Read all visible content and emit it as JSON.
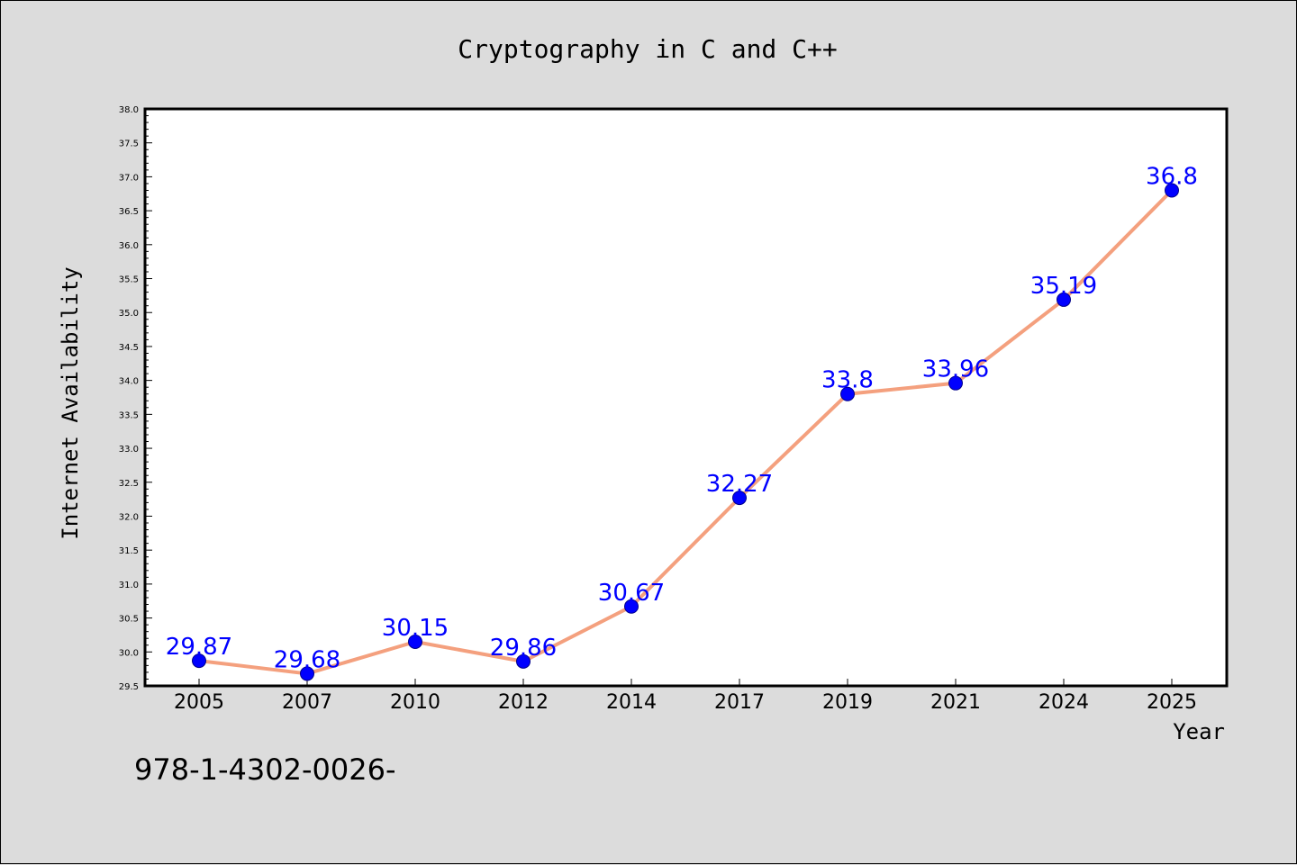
{
  "footer_text": "978-1-4302-0026-",
  "chart_data": {
    "type": "line",
    "title": "Cryptography in C and C++",
    "xlabel": "Year",
    "ylabel": "Internet Availability",
    "categories": [
      "2005",
      "2007",
      "2010",
      "2012",
      "2014",
      "2017",
      "2019",
      "2021",
      "2024",
      "2025"
    ],
    "series": [
      {
        "values": [
          29.87,
          29.68,
          30.15,
          29.86,
          30.67,
          32.27,
          33.8,
          33.96,
          35.19,
          36.8
        ],
        "data_labels": [
          "29.87",
          "29.68",
          "30.15",
          "29.86",
          "30.67",
          "32.27",
          "33.8",
          "33.96",
          "35.19",
          "36.8"
        ],
        "line_color": "#f4a07e",
        "marker_color": "#0000ff",
        "label_color": "#0000ff"
      }
    ],
    "ylim": [
      29.5,
      38.0
    ],
    "y_major_step": 0.5,
    "y_tick_labels": [
      "29.5",
      "30.0",
      "30.5",
      "31.0",
      "31.5",
      "32.0",
      "32.5",
      "33.0",
      "33.5",
      "34.0",
      "34.5",
      "35.0",
      "35.5",
      "36.0",
      "36.5",
      "37.0",
      "37.5",
      "38.0"
    ],
    "grid": false,
    "legend": "none",
    "plot_background": "#ffffff",
    "figure_background": "#dcdcdc"
  }
}
